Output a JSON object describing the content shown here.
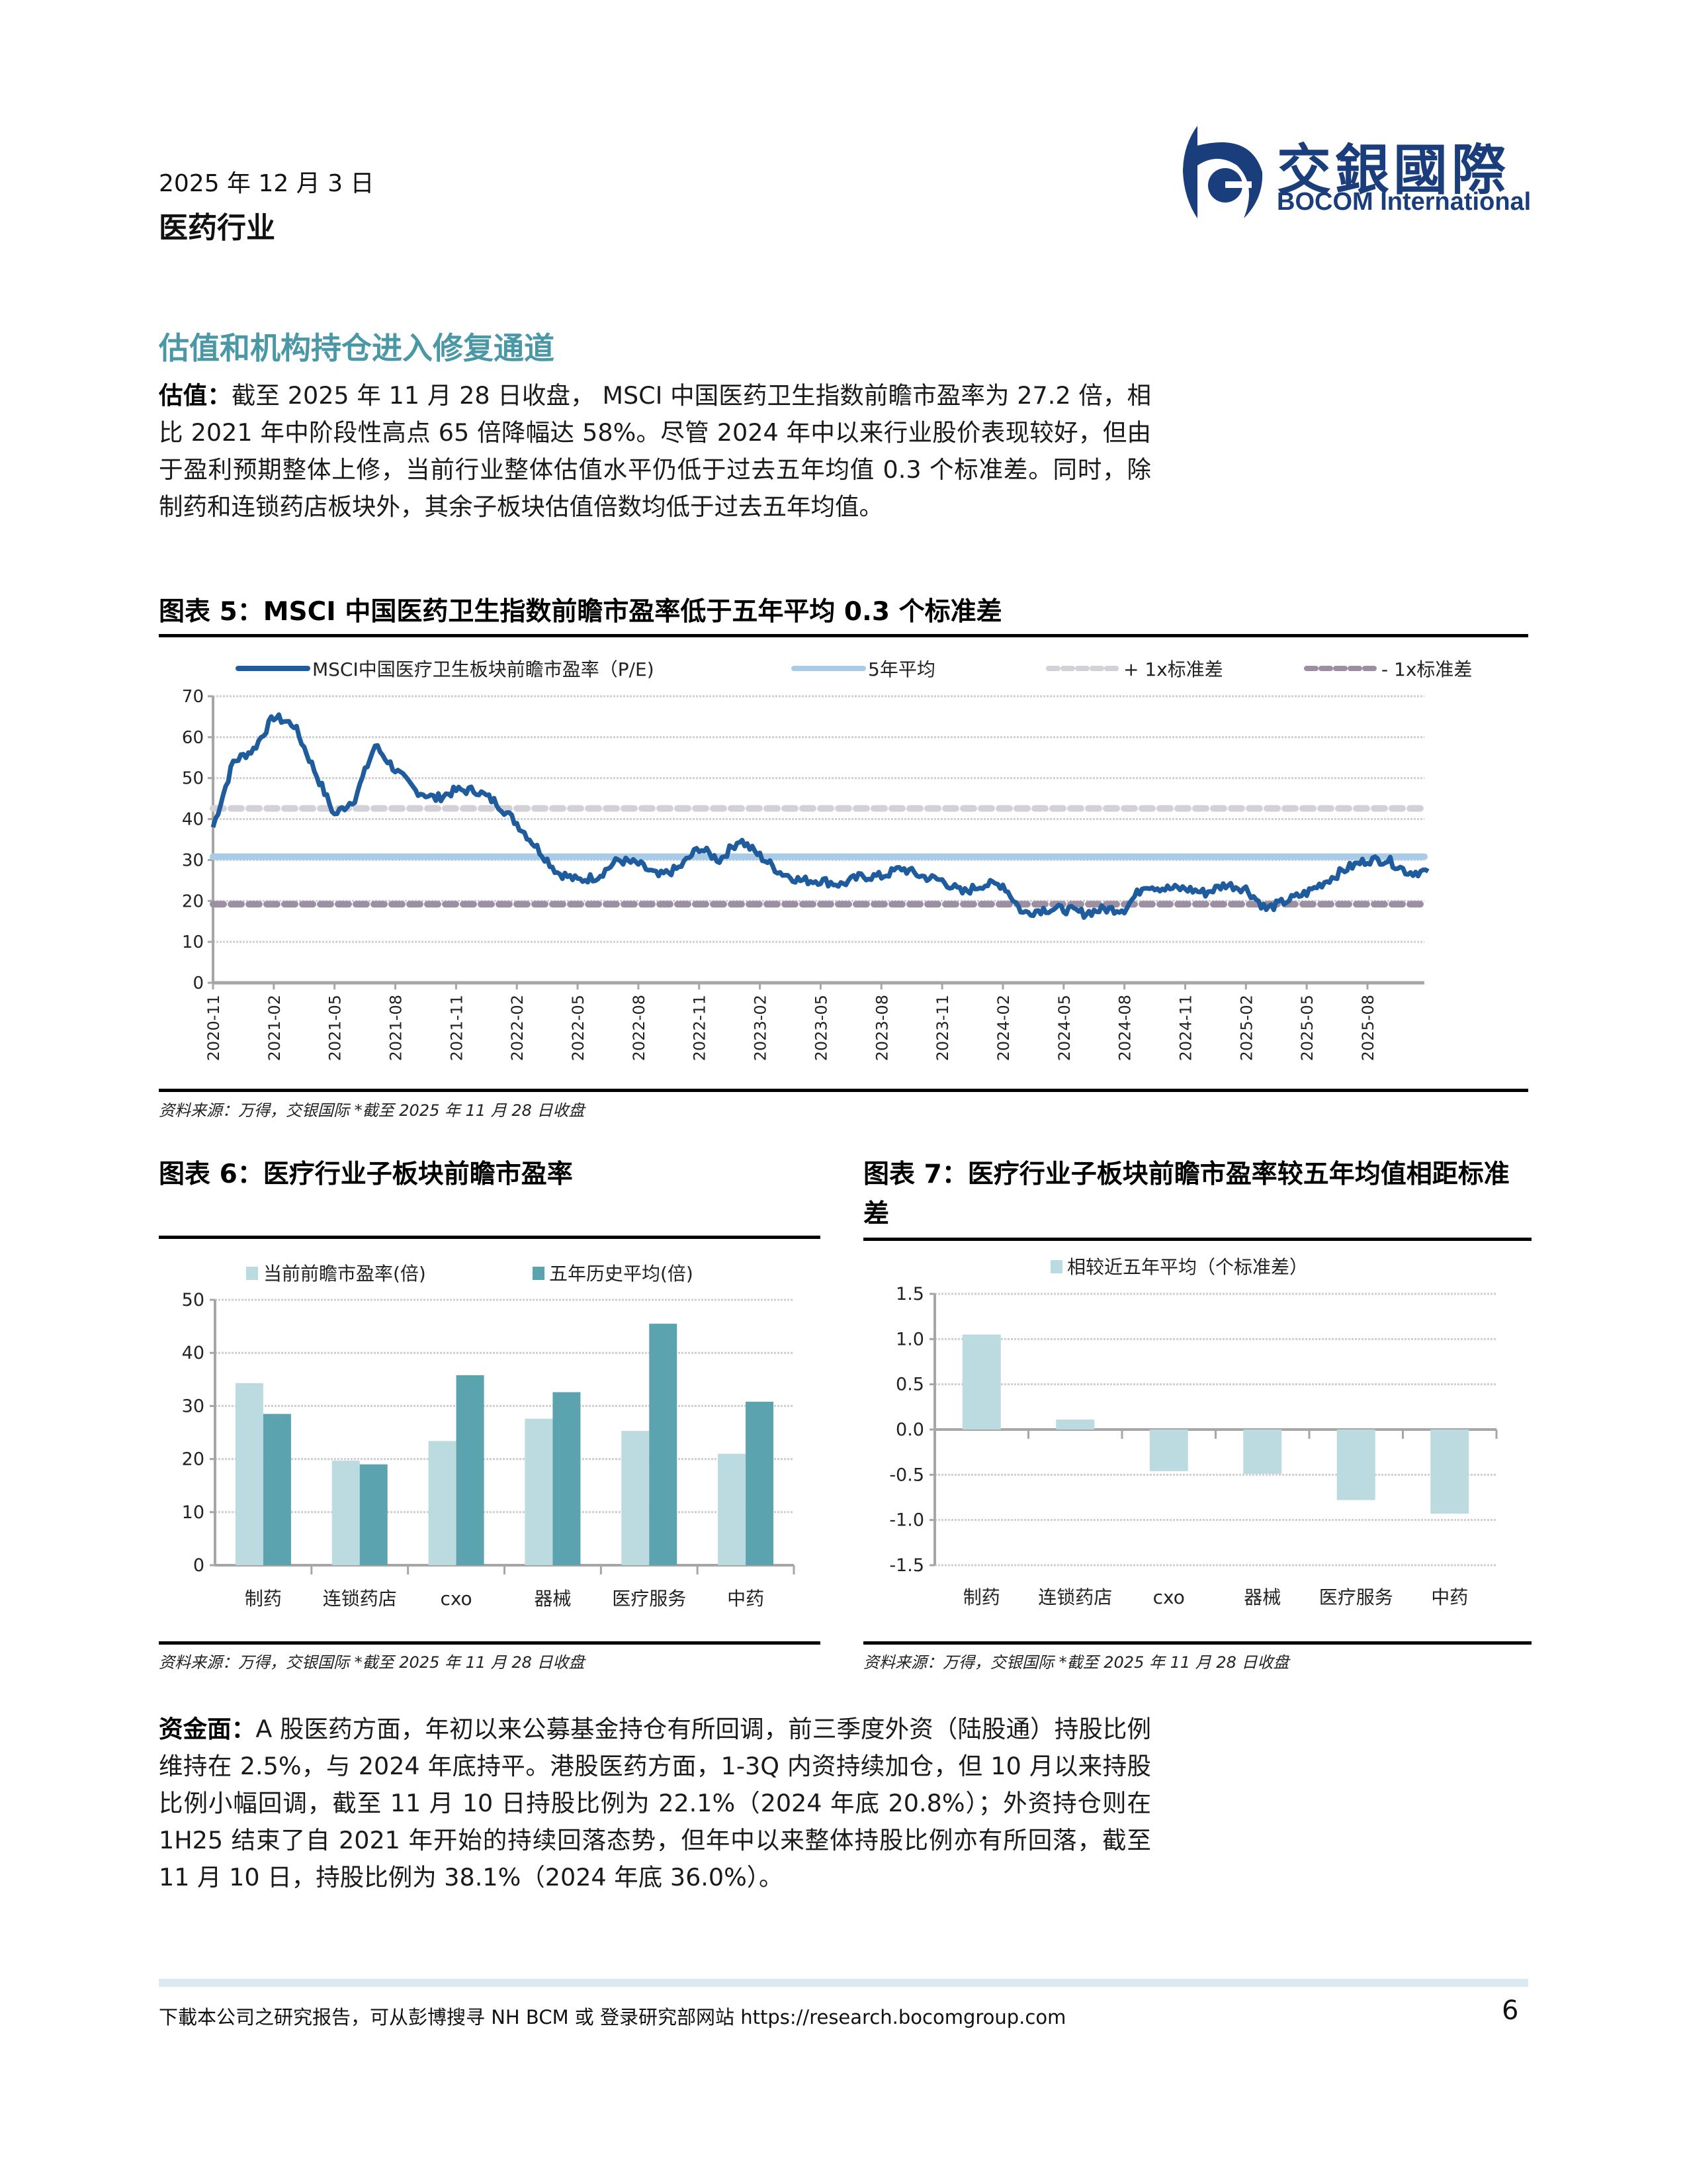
{
  "header": {
    "date": "2025 年 12 月 3 日",
    "industry": "医药行业",
    "logo": {
      "cn": "交銀國際",
      "en": "BOCOM International",
      "brand_color": "#1a3d7c"
    }
  },
  "section_title": "估值和机构持仓进入修复通道",
  "valuation_paragraph": {
    "lead": "估值：",
    "body": "截至 2025 年 11 月 28 日收盘， MSCI 中国医药卫生指数前瞻市盈率为 27.2 倍，相比 2021 年中阶段性高点 65 倍降幅达 58%。尽管 2024 年中以来行业股价表现较好，但由于盈利预期整体上修，当前行业整体估值水平仍低于过去五年均值 0.3 个标准差。同时，除制药和连锁药店板块外，其余子板块估值倍数均低于过去五年均值。"
  },
  "figure5": {
    "title": "图表 5：MSCI 中国医药卫生指数前瞻市盈率低于五年平均 0.3 个标准差",
    "legend": [
      "MSCI中国医疗卫生板块前瞻市盈率（P/E)",
      "5年平均",
      "+ 1x标准差",
      "- 1x标准差"
    ],
    "source": "资料来源：万得，交银国际   *截至 2025 年 11 月 28 日收盘"
  },
  "figure6": {
    "title": "图表 6：医疗行业子板块前瞻市盈率",
    "legend": [
      "当前前瞻市盈率(倍)",
      "五年历史平均(倍)"
    ],
    "source": "资料来源：万得，交银国际   *截至 2025 年 11 月 28 日收盘"
  },
  "figure7": {
    "title": "图表 7：医疗行业子板块前瞻市盈率较五年均值相距标准差",
    "legend": [
      "相较近五年平均（个标准差）"
    ],
    "source": "资料来源：万得，交银国际   *截至 2025 年 11 月 28 日收盘"
  },
  "funds_paragraph": {
    "lead": "资金面：",
    "body": "A 股医药方面，年初以来公募基金持仓有所回调，前三季度外资（陆股通）持股比例维持在 2.5%，与 2024 年底持平。港股医药方面，1-3Q 内资持续加仓，但 10 月以来持股比例小幅回调，截至 11 月 10 日持股比例为 22.1%（2024 年底 20.8%）；外资持仓则在 1H25 结束了自 2021 年开始的持续回落态势，但年中以来整体持股比例亦有所回落，截至 11 月 10 日，持股比例为 38.1%（2024 年底 36.0%）。"
  },
  "footer": {
    "text": "下載本公司之研究报告，可从彭博搜寻 NH BCM 或 登录研究部网站 https://research.bocomgroup.com",
    "page_number": "6"
  },
  "chart_data": [
    {
      "type": "line",
      "title": "MSCI 中国医药卫生指数前瞻市盈率低于五年平均 0.3 个标准差",
      "xlabel": "",
      "ylabel": "",
      "ylim": [
        0,
        70
      ],
      "yticks": [
        0,
        10,
        20,
        30,
        40,
        50,
        60,
        70
      ],
      "grid": true,
      "legend_position": "top",
      "x_tick_labels": [
        "2020-11",
        "2021-02",
        "2021-05",
        "2021-08",
        "2021-11",
        "2022-02",
        "2022-05",
        "2022-08",
        "2022-11",
        "2023-02",
        "2023-05",
        "2023-08",
        "2023-11",
        "2024-02",
        "2024-05",
        "2024-08",
        "2024-11",
        "2025-02",
        "2025-05",
        "2025-08"
      ],
      "x": [
        "2020-11",
        "2020-12",
        "2021-01",
        "2021-02",
        "2021-03",
        "2021-04",
        "2021-05",
        "2021-06",
        "2021-07",
        "2021-08",
        "2021-09",
        "2021-10",
        "2021-11",
        "2021-12",
        "2022-01",
        "2022-02",
        "2022-03",
        "2022-04",
        "2022-05",
        "2022-06",
        "2022-07",
        "2022-08",
        "2022-09",
        "2022-10",
        "2022-11",
        "2022-12",
        "2023-01",
        "2023-02",
        "2023-03",
        "2023-04",
        "2023-05",
        "2023-06",
        "2023-07",
        "2023-08",
        "2023-09",
        "2023-10",
        "2023-11",
        "2023-12",
        "2024-01",
        "2024-02",
        "2024-03",
        "2024-04",
        "2024-05",
        "2024-06",
        "2024-07",
        "2024-08",
        "2024-09",
        "2024-10",
        "2024-11",
        "2024-12",
        "2025-01",
        "2025-02",
        "2025-03",
        "2025-04",
        "2025-05",
        "2025-06",
        "2025-07",
        "2025-08",
        "2025-09",
        "2025-10",
        "2025-11"
      ],
      "series": [
        {
          "name": "MSCI中国医疗卫生板块前瞻市盈率（P/E)",
          "color": "#1f5c9e",
          "values": [
            38,
            54,
            57,
            65,
            63,
            52,
            41,
            45,
            58,
            52,
            47,
            45,
            47,
            47,
            44,
            39,
            33,
            27,
            25,
            26,
            30,
            29,
            26,
            28,
            33,
            30,
            35,
            31,
            27,
            25,
            25,
            24,
            26,
            26,
            28,
            26,
            25,
            22,
            24,
            24,
            17,
            18,
            18,
            17,
            18,
            18,
            24,
            23,
            23,
            22,
            24,
            23,
            18,
            20,
            22,
            25,
            28,
            30,
            30,
            27,
            27.2
          ]
        },
        {
          "name": "5年平均",
          "color": "#a8cbe8",
          "values_constant": 30.8
        },
        {
          "name": "+ 1x标准差",
          "color": "#d4d0d8",
          "values_constant": 42.6
        },
        {
          "name": "- 1x标准差",
          "color": "#9c8fa3",
          "values_constant": 19.2
        }
      ]
    },
    {
      "type": "bar",
      "title": "医疗行业子板块前瞻市盈率",
      "categories": [
        "制药",
        "连锁药店",
        "CXO",
        "器械",
        "医疗服务",
        "中药"
      ],
      "series": [
        {
          "name": "当前前瞻市盈率(倍)",
          "color": "#bcdbe0",
          "values": [
            34.3,
            19.7,
            23.4,
            27.6,
            25.3,
            21.0
          ]
        },
        {
          "name": "五年历史平均(倍)",
          "color": "#5ba3ae",
          "values": [
            28.5,
            19.0,
            35.8,
            32.6,
            45.5,
            30.8
          ]
        }
      ],
      "xlabel": "",
      "ylabel": "",
      "ylim": [
        0,
        50
      ],
      "yticks": [
        0,
        10,
        20,
        30,
        40,
        50
      ],
      "grid": true,
      "legend_position": "top"
    },
    {
      "type": "bar",
      "title": "医疗行业子板块前瞻市盈率较五年均值相距标准差",
      "categories": [
        "制药",
        "连锁药店",
        "CXO",
        "器械",
        "医疗服务",
        "中药"
      ],
      "series": [
        {
          "name": "相较近五年平均（个标准差）",
          "color": "#bcdbe0",
          "values": [
            1.05,
            0.11,
            -0.46,
            -0.49,
            -0.78,
            -0.93
          ]
        }
      ],
      "xlabel": "",
      "ylabel": "",
      "ylim": [
        -1.5,
        1.5
      ],
      "yticks": [
        "-1.5",
        "-1.0",
        "-0.5",
        "0.0",
        "0.5",
        "1.0",
        "1.5"
      ],
      "grid": true,
      "legend_position": "top"
    }
  ]
}
